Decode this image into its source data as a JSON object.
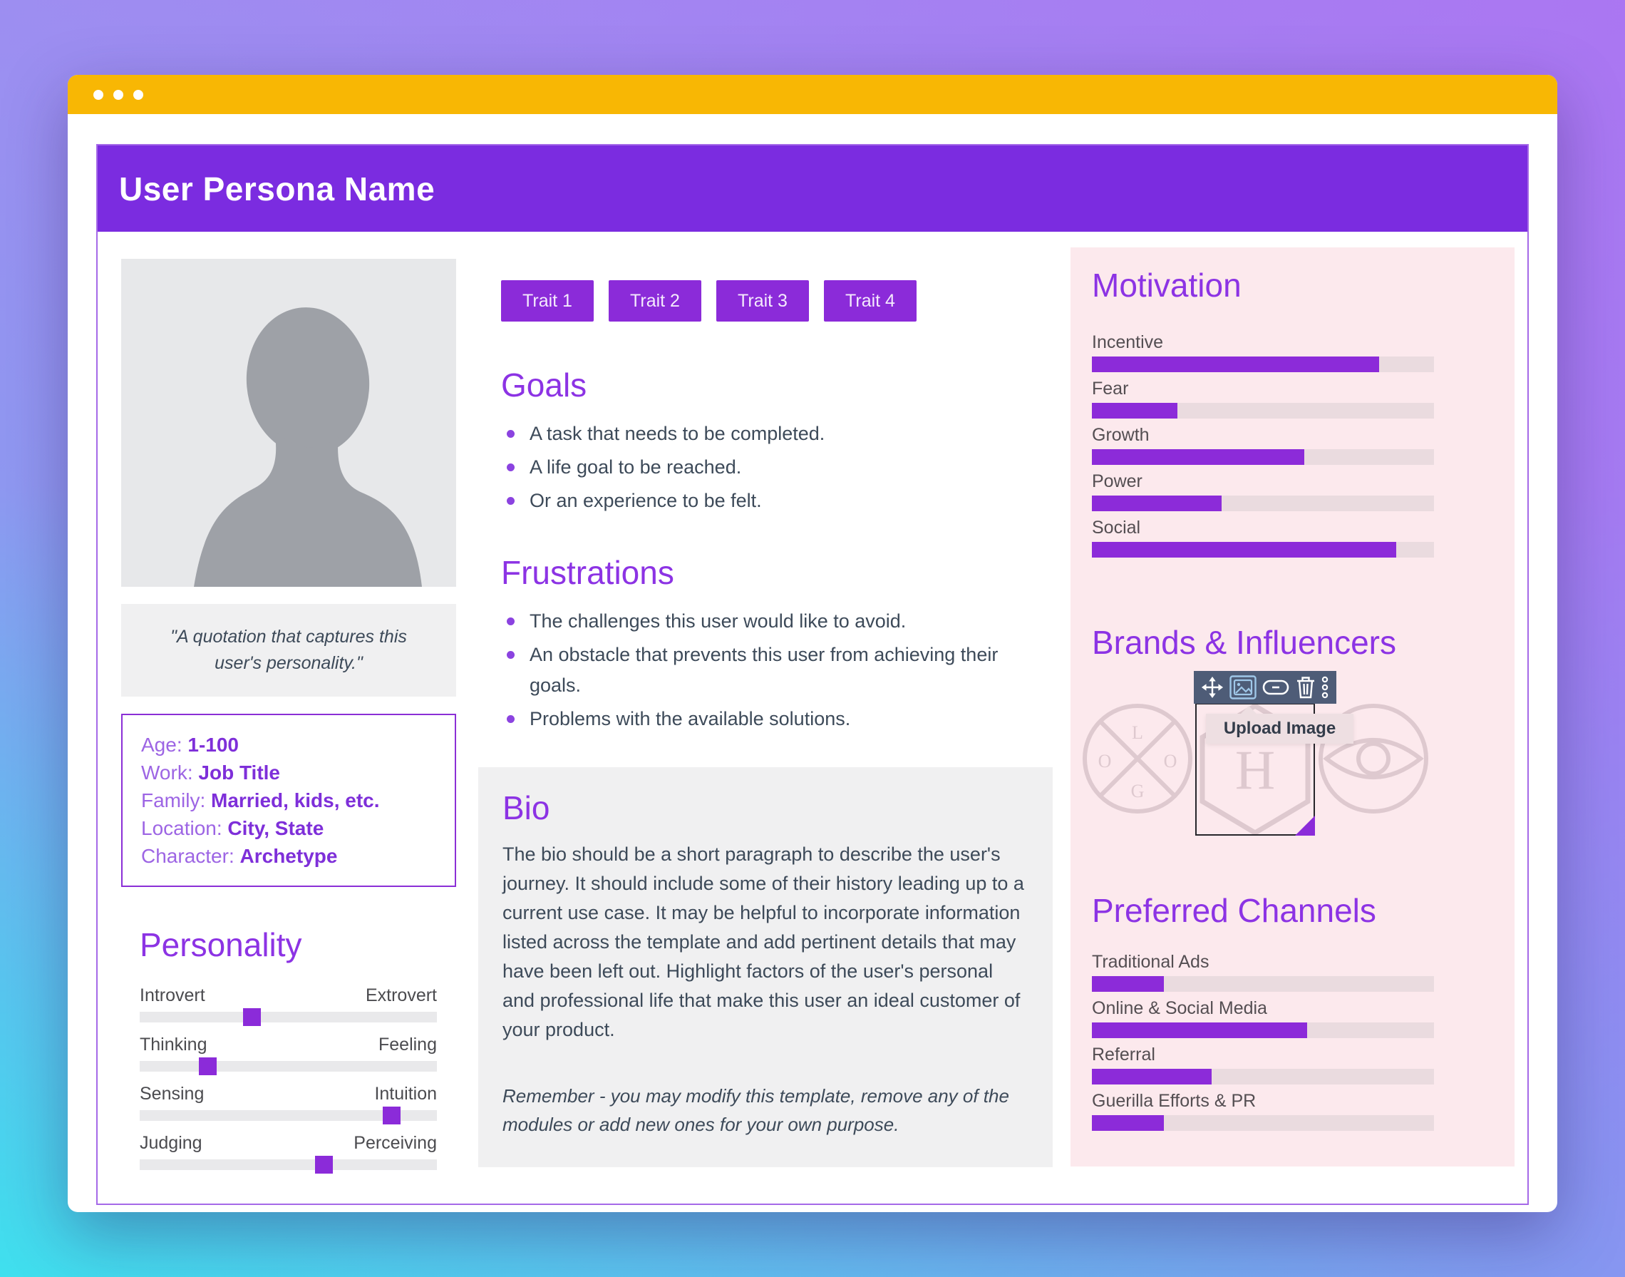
{
  "window": {
    "titlebar_dots": 3,
    "header_title": "User Persona Name"
  },
  "traits": [
    "Trait 1",
    "Trait 2",
    "Trait 3",
    "Trait 4"
  ],
  "goals": {
    "heading": "Goals",
    "items": [
      "A task that needs to be completed.",
      "A life goal to be reached.",
      "Or an experience to be felt."
    ]
  },
  "frustrations": {
    "heading": "Frustrations",
    "items": [
      "The challenges this user would like to avoid.",
      "An obstacle that prevents this user from achieving their goals.",
      "Problems with the available solutions."
    ]
  },
  "bio": {
    "heading": "Bio",
    "text": "The bio should be a short paragraph to describe the user's journey. It should include some of their history leading up to a current use case. It may be helpful to incorporate information listed across the template and add pertinent details that may have been left out. Highlight factors of the user's personal and professional life that make this user an ideal customer of your product.",
    "note": "Remember - you may modify this template, remove any of the modules or add new ones for your own purpose."
  },
  "quote": "\"A quotation that captures this user's personality.\"",
  "details": {
    "rows": [
      {
        "label": "Age: ",
        "value": "1-100"
      },
      {
        "label": "Work: ",
        "value": "Job Title"
      },
      {
        "label": "Family: ",
        "value": "Married, kids, etc."
      },
      {
        "label": "Location: ",
        "value": "City, State"
      },
      {
        "label": "Character: ",
        "value": "Archetype"
      }
    ]
  },
  "personality": {
    "heading": "Personality",
    "sliders": [
      {
        "left": "Introvert",
        "right": "Extrovert",
        "value": 38
      },
      {
        "left": "Thinking",
        "right": "Feeling",
        "value": 23
      },
      {
        "left": "Sensing",
        "right": "Intuition",
        "value": 85
      },
      {
        "left": "Judging",
        "right": "Perceiving",
        "value": 62
      }
    ]
  },
  "chart_data": [
    {
      "type": "bar",
      "title": "Motivation",
      "categories": [
        "Incentive",
        "Fear",
        "Growth",
        "Power",
        "Social"
      ],
      "values": [
        84,
        25,
        62,
        38,
        89
      ],
      "ylim": [
        0,
        100
      ],
      "unit": "percent of track filled"
    },
    {
      "type": "bar",
      "title": "Preferred Channels",
      "categories": [
        "Traditional Ads",
        "Online & Social Media",
        "Referral",
        "Guerilla Efforts & PR"
      ],
      "values": [
        21,
        63,
        35,
        21
      ],
      "ylim": [
        0,
        100
      ],
      "unit": "percent of track filled"
    }
  ],
  "motivation": {
    "heading": "Motivation",
    "bars": [
      {
        "label": "Incentive",
        "value": 84
      },
      {
        "label": "Fear",
        "value": 25
      },
      {
        "label": "Growth",
        "value": 62
      },
      {
        "label": "Power",
        "value": 38
      },
      {
        "label": "Social",
        "value": 89
      }
    ]
  },
  "brands": {
    "heading": "Brands & Influencers",
    "tooltip": "Upload Image",
    "toolbar_icons": [
      "move-icon",
      "image-icon",
      "link-icon",
      "trash-icon",
      "kebab-menu-icon"
    ],
    "logo_badge_letters": [
      "L",
      "O",
      "O",
      "G"
    ],
    "logo_hex_letter": "H"
  },
  "channels": {
    "heading": "Preferred Channels",
    "bars": [
      {
        "label": "Traditional Ads",
        "value": 21
      },
      {
        "label": "Online & Social Media",
        "value": 63
      },
      {
        "label": "Referral",
        "value": 35
      },
      {
        "label": "Guerilla Efforts & PR",
        "value": 21
      }
    ]
  },
  "palette": {
    "titlebar_yellow": "#F8B704",
    "header_purple": "#7B2CE0",
    "accent_purple": "#8B2BD9",
    "heading_purple": "#8C33E4",
    "panel_pink": "#FCE9ED",
    "body_slate": "#3D4A59",
    "toolbar_slate": "#4E5C77",
    "logo_dusty_pink": "#DEC9CF"
  }
}
